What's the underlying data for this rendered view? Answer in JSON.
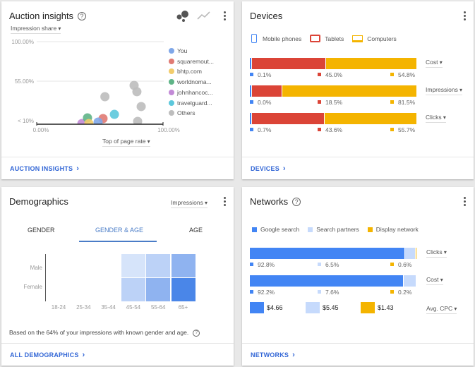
{
  "auction": {
    "title": "Auction insights",
    "metric": "Impression share",
    "x_metric": "Top of page rate",
    "footer": "AUCTION INSIGHTS",
    "icons": [
      "help-icon",
      "bubble-chart-icon",
      "line-chart-icon",
      "more-vert-icon"
    ],
    "chart_data": {
      "type": "scatter",
      "xlabel": "Top of page rate",
      "ylabel": "Impression share",
      "xlim": [
        0,
        100
      ],
      "ylim": [
        10,
        100
      ],
      "y_ticks": [
        "100.00%",
        "55.00%",
        "< 10%"
      ],
      "x_ticks": [
        "0.00%",
        "100.00%"
      ],
      "legend_position": "right",
      "series": [
        {
          "name": "You",
          "color": "#7fa7e8",
          "points": [
            [
              48.6,
              8.4
            ]
          ]
        },
        {
          "name": "squaremout...",
          "color": "#e07a73",
          "points": [
            [
              52.5,
              12.4
            ]
          ]
        },
        {
          "name": "bhtp.com",
          "color": "#f2cc6b",
          "points": [
            [
              41.3,
              6.8
            ]
          ]
        },
        {
          "name": "worldnoma...",
          "color": "#5fb487",
          "points": [
            [
              40.2,
              13.2
            ]
          ]
        },
        {
          "name": "johnhancoc...",
          "color": "#c28ad6",
          "points": [
            [
              35.8,
              6.8
            ]
          ]
        },
        {
          "name": "travelguard...",
          "color": "#5cc8dc",
          "points": [
            [
              61.5,
              17.2
            ]
          ]
        },
        {
          "name": "Others",
          "color": "#bdbdbd",
          "points": [
            [
              54,
              37.3
            ],
            [
              77.1,
              50.2
            ],
            [
              79.3,
              43
            ],
            [
              82.7,
              26.1
            ],
            [
              79.9,
              9.2
            ]
          ]
        }
      ]
    }
  },
  "devices": {
    "title": "Devices",
    "footer": "DEVICES",
    "legend": [
      {
        "name": "Mobile phones",
        "color": "#4285f4"
      },
      {
        "name": "Tablets",
        "color": "#db4437"
      },
      {
        "name": "Computers",
        "color": "#f4b400"
      }
    ],
    "rows": [
      {
        "metric": "Cost",
        "values": [
          "0.1%",
          "45.0%",
          "54.8%"
        ],
        "nums": [
          0.1,
          45.0,
          54.8
        ]
      },
      {
        "metric": "Impressions",
        "values": [
          "0.0%",
          "18.5%",
          "81.5%"
        ],
        "nums": [
          0.0,
          18.5,
          81.5
        ]
      },
      {
        "metric": "Clicks",
        "values": [
          "0.7%",
          "43.6%",
          "55.7%"
        ],
        "nums": [
          0.7,
          43.6,
          55.7
        ]
      }
    ]
  },
  "demographics": {
    "title": "Demographics",
    "metric": "Impressions",
    "footer": "ALL DEMOGRAPHICS",
    "tabs": [
      "GENDER",
      "GENDER & AGE",
      "AGE"
    ],
    "active_tab": 1,
    "rows": [
      "Male",
      "Female"
    ],
    "cols": [
      "18-24",
      "25-34",
      "35-44",
      "45-54",
      "55-64",
      "65+"
    ],
    "heat": [
      [
        "",
        "",
        "",
        "#d6e4fa",
        "#bcd2f7",
        "#8fb3f0"
      ],
      [
        "",
        "",
        "",
        "#bcd2f7",
        "#8fb3f0",
        "#4a86e8"
      ]
    ],
    "note": "Based on the 64% of your impressions with known gender and age."
  },
  "networks": {
    "title": "Networks",
    "footer": "NETWORKS",
    "legend": [
      {
        "name": "Google search",
        "color": "#4285f4"
      },
      {
        "name": "Search partners",
        "color": "#c6dafc"
      },
      {
        "name": "Display network",
        "color": "#f4b400"
      }
    ],
    "rows": [
      {
        "metric": "Clicks",
        "values": [
          "92.8%",
          "6.5%",
          "0.6%"
        ],
        "nums": [
          92.8,
          6.5,
          0.6
        ]
      },
      {
        "metric": "Cost",
        "values": [
          "92.2%",
          "7.6%",
          "0.2%"
        ],
        "nums": [
          92.2,
          7.6,
          0.2
        ]
      }
    ],
    "cpc": {
      "metric": "Avg. CPC",
      "values": [
        "$4.66",
        "$5.45",
        "$1.43"
      ]
    }
  }
}
